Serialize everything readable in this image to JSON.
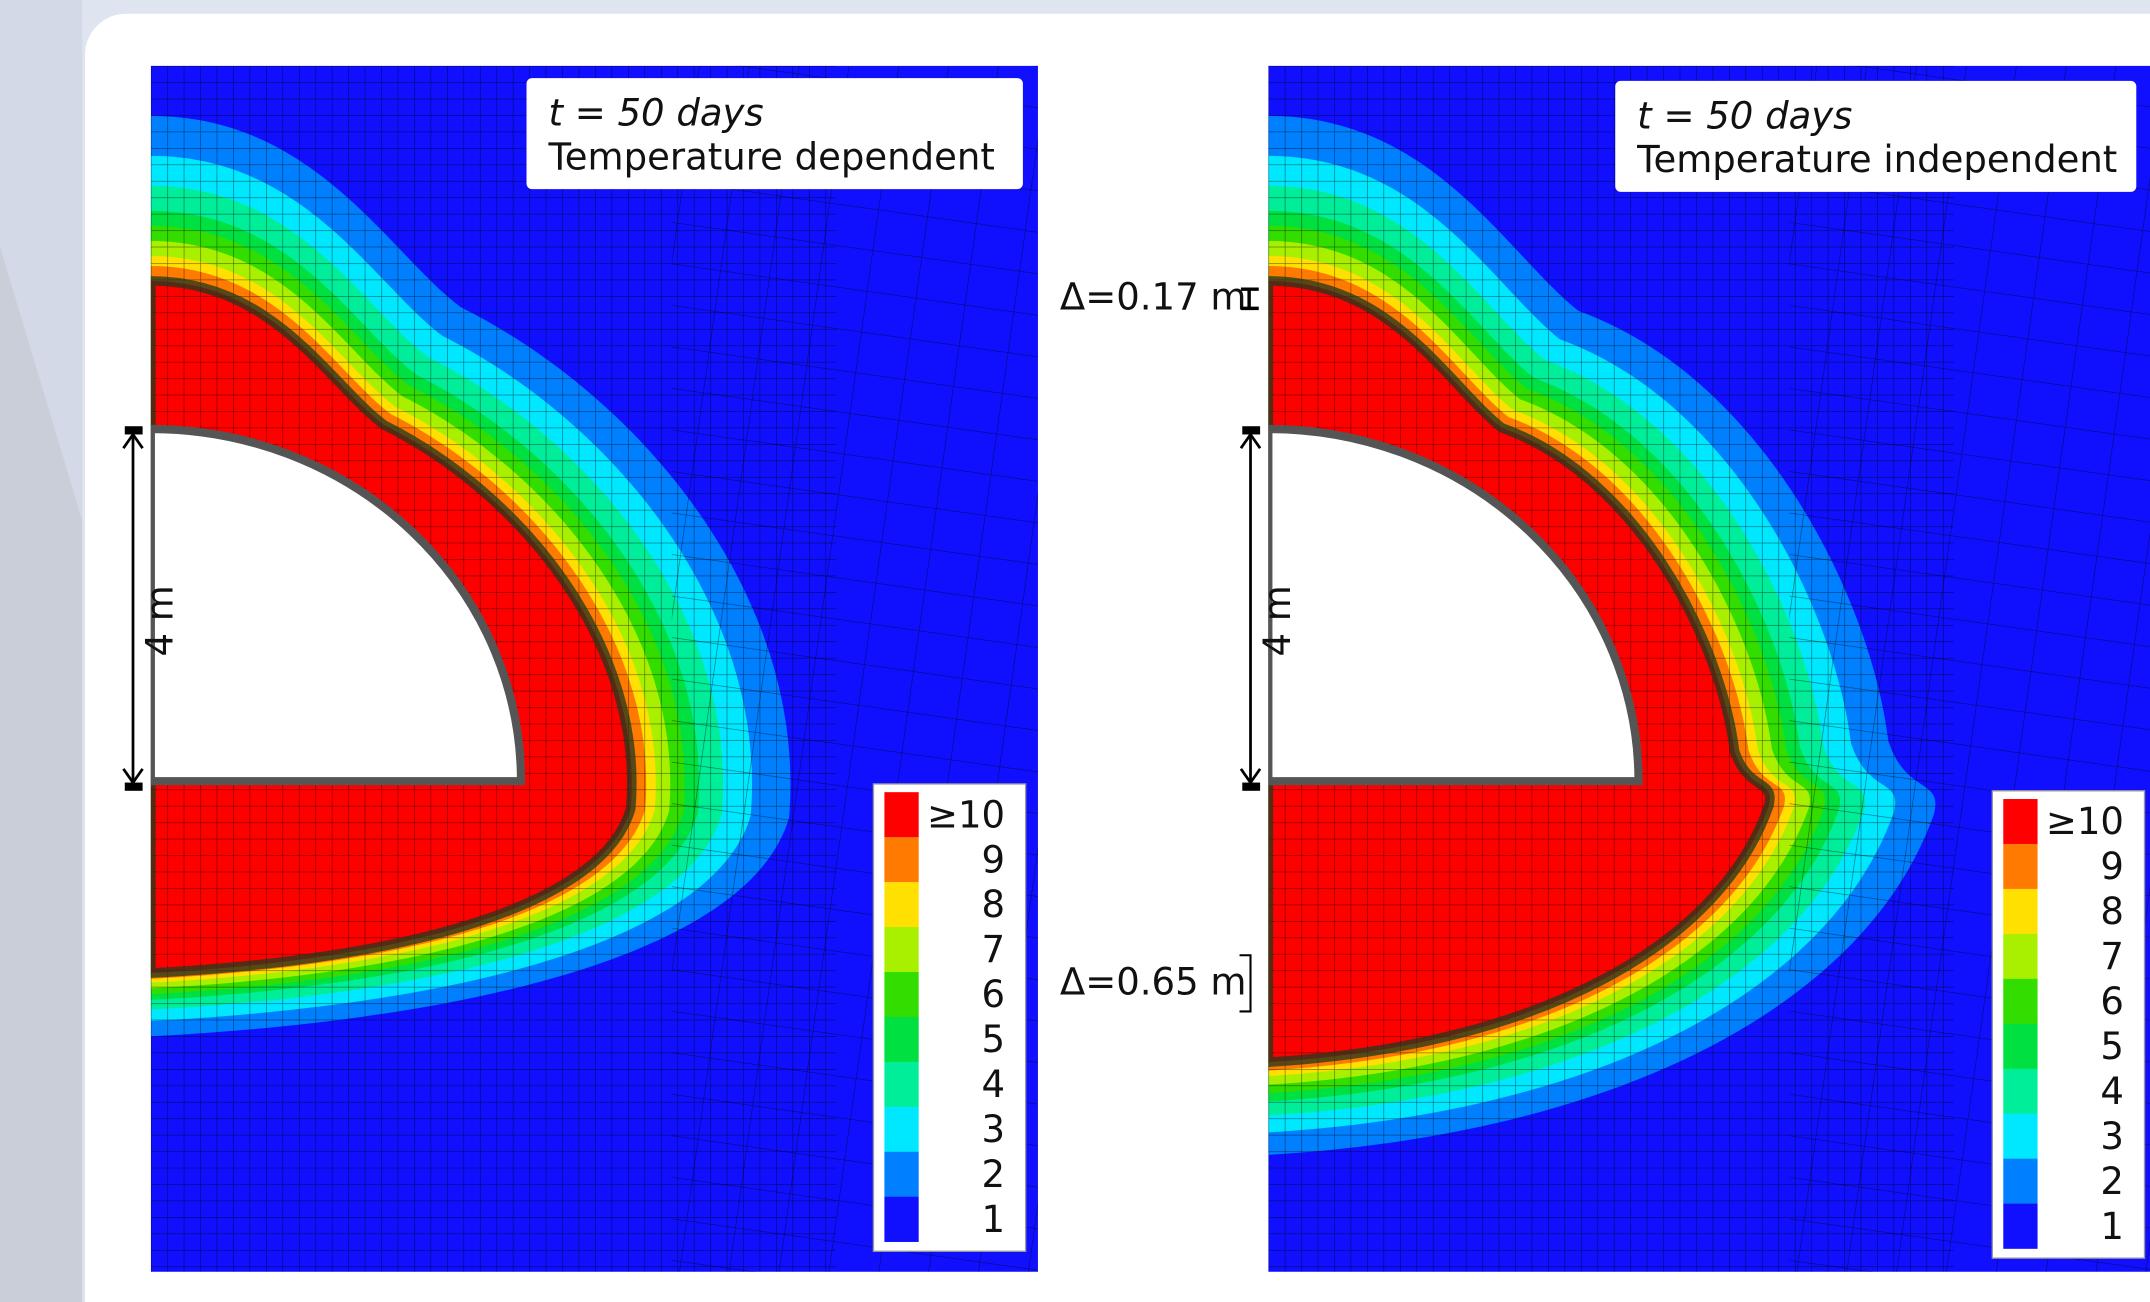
{
  "panels": [
    {
      "time_label": "t = 50 days",
      "condition": "Temperature dependent",
      "dimension": "4 m"
    },
    {
      "time_label": "t = 50 days",
      "condition": "Temperature independent",
      "dimension": "4 m",
      "delta_top": "Δ=0.17 m",
      "delta_bottom": "Δ=0.65 m"
    }
  ],
  "legend": {
    "labels": [
      "≥10",
      "9",
      "8",
      "7",
      "6",
      "5",
      "4",
      "3",
      "2",
      "1"
    ],
    "colors": [
      "#ff0000",
      "#ff7a00",
      "#ffe000",
      "#a8f000",
      "#33dd00",
      "#00e040",
      "#00ee99",
      "#00e8ff",
      "#0080ff",
      "#1010ff"
    ]
  }
}
